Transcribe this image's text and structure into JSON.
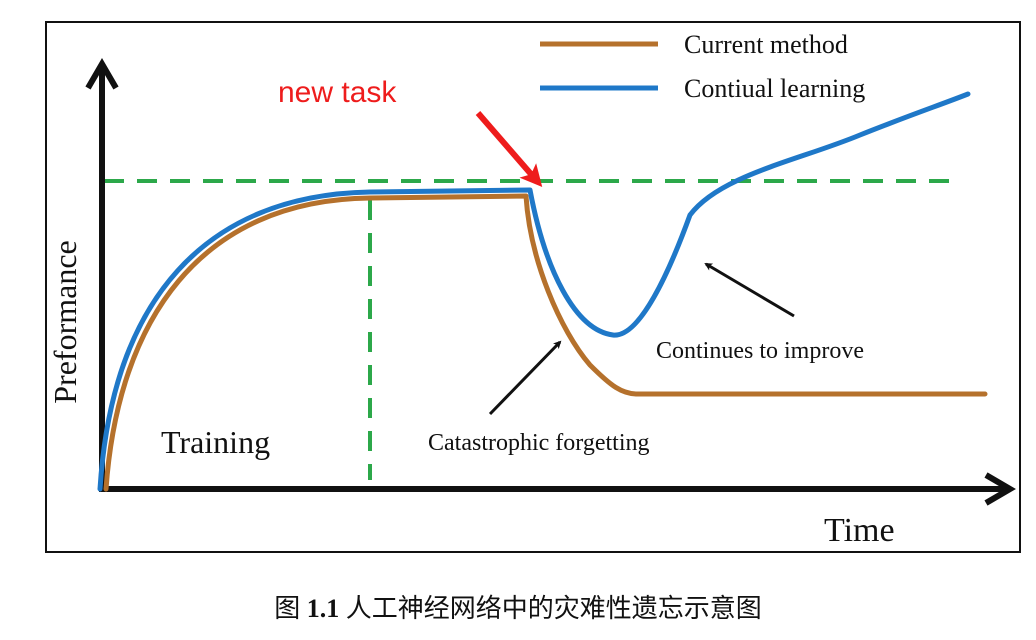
{
  "figure": {
    "new_task_label": "new task",
    "ylabel": "Preformance",
    "xlabel": "Time",
    "training_label": "Training",
    "catastrophic_label": "Catastrophic forgetting",
    "improve_label": "Continues to improve",
    "caption_prefix": "图 ",
    "caption_number": "1.1",
    "caption_text": " 人工神经网络中的灾难性遗忘示意图"
  },
  "legend": {
    "items": [
      {
        "label": "Current method",
        "color": "#b5712c"
      },
      {
        "label": "Contiual learning",
        "color": "#1f78c8"
      }
    ]
  },
  "colors": {
    "current_method": "#b5712c",
    "continual_learning": "#1f78c8",
    "dashed_guides": "#2ca84a",
    "new_task_arrow": "#ee1c1c",
    "axes": "#111111",
    "annotation_arrows": "#111111"
  }
}
